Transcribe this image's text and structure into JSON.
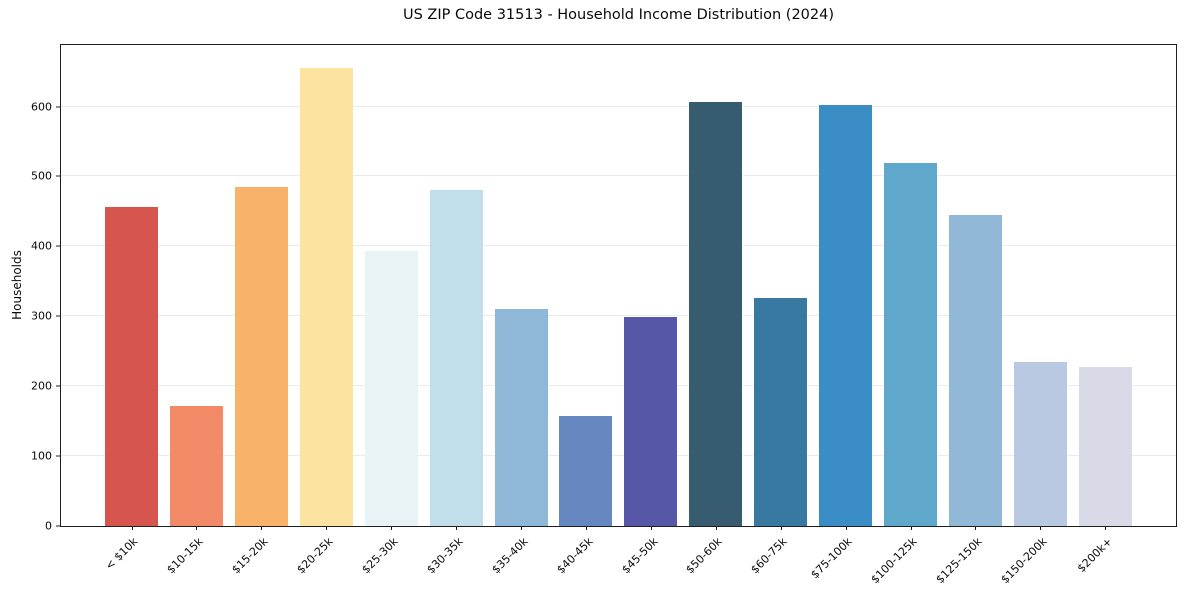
{
  "chart_data": {
    "type": "bar",
    "title": "US ZIP Code 31513 - Household Income Distribution (2024)",
    "xlabel": "",
    "ylabel": "Households",
    "ylim": [
      0,
      688
    ],
    "yticks": [
      0,
      100,
      200,
      300,
      400,
      500,
      600
    ],
    "grid": "horizontal",
    "legend": "none",
    "x_tick_rotation_deg": 45,
    "categories": [
      "< $10k",
      "$10-15k",
      "$15-20k",
      "$20-25k",
      "$25-30k",
      "$30-35k",
      "$35-40k",
      "$40-45k",
      "$45-50k",
      "$50-60k",
      "$60-75k",
      "$75-100k",
      "$100-125k",
      "$125-150k",
      "$150-200k",
      "$200k+"
    ],
    "values": [
      457,
      171,
      485,
      655,
      393,
      480,
      310,
      158,
      299,
      606,
      326,
      602,
      519,
      445,
      235,
      227
    ],
    "bar_colors": [
      "#d6564f",
      "#f28a68",
      "#f9b269",
      "#fce3a0",
      "#e7f3f5",
      "#c0dfeb",
      "#8fb8d8",
      "#6787c0",
      "#5757a8",
      "#375c6f",
      "#3779a1",
      "#3a8ec5",
      "#5fa8cc",
      "#92b8d8",
      "#b9c9e1",
      "#d9d9e8"
    ],
    "style_colors": {
      "spine": "#1f1f1f",
      "gridline": "#ebebeb",
      "text": "#0a0a0a",
      "background": "#ffffff"
    }
  }
}
